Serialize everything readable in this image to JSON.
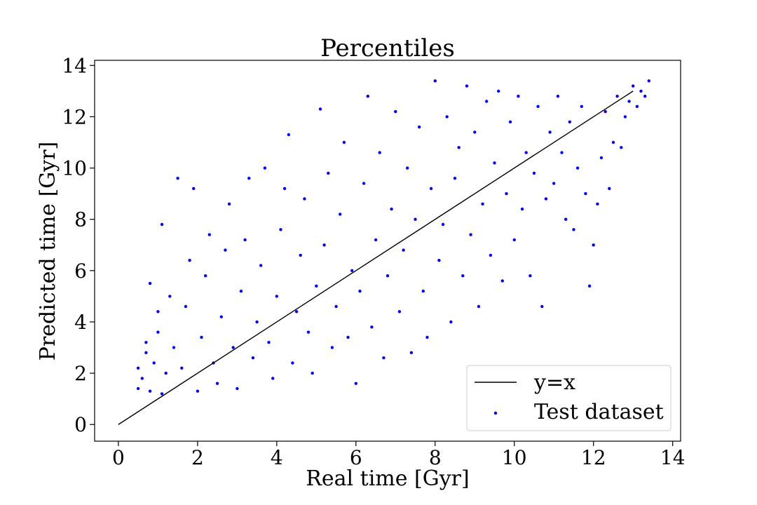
{
  "chart_data": {
    "type": "scatter",
    "title": "Percentiles",
    "xlabel": "Real time [Gyr]",
    "ylabel": "Predicted time [Gyr]",
    "xlim": [
      -0.6,
      14.2
    ],
    "ylim": [
      -0.65,
      14.2
    ],
    "xticks": [
      0,
      2,
      4,
      6,
      8,
      10,
      12,
      14
    ],
    "yticks": [
      0,
      2,
      4,
      6,
      8,
      10,
      12,
      14
    ],
    "grid": false,
    "legend_position": "lower-right",
    "series": [
      {
        "name": "y=x",
        "kind": "line",
        "color": "#000000",
        "x": [
          0,
          13.0
        ],
        "y": [
          0,
          13.0
        ]
      },
      {
        "name": "Test dataset",
        "kind": "scatter",
        "color": "#0000ee",
        "points": [
          [
            0.5,
            1.4
          ],
          [
            0.5,
            2.2
          ],
          [
            0.6,
            1.8
          ],
          [
            0.7,
            2.8
          ],
          [
            0.7,
            3.2
          ],
          [
            0.8,
            1.3
          ],
          [
            0.8,
            5.5
          ],
          [
            0.9,
            2.4
          ],
          [
            1.0,
            3.6
          ],
          [
            1.0,
            4.4
          ],
          [
            1.1,
            1.2
          ],
          [
            1.1,
            7.8
          ],
          [
            1.2,
            2.0
          ],
          [
            1.3,
            5.0
          ],
          [
            1.4,
            3.0
          ],
          [
            1.5,
            9.6
          ],
          [
            1.6,
            2.2
          ],
          [
            1.7,
            4.6
          ],
          [
            1.8,
            6.4
          ],
          [
            1.9,
            9.2
          ],
          [
            2.0,
            1.3
          ],
          [
            2.1,
            3.4
          ],
          [
            2.2,
            5.8
          ],
          [
            2.3,
            7.4
          ],
          [
            2.4,
            2.4
          ],
          [
            2.5,
            1.6
          ],
          [
            2.6,
            4.2
          ],
          [
            2.7,
            6.8
          ],
          [
            2.8,
            8.6
          ],
          [
            2.9,
            3.0
          ],
          [
            3.0,
            1.4
          ],
          [
            3.1,
            5.2
          ],
          [
            3.2,
            7.2
          ],
          [
            3.3,
            9.6
          ],
          [
            3.4,
            2.6
          ],
          [
            3.5,
            4.0
          ],
          [
            3.6,
            6.2
          ],
          [
            3.7,
            10.0
          ],
          [
            3.8,
            3.2
          ],
          [
            3.9,
            1.8
          ],
          [
            4.0,
            5.0
          ],
          [
            4.1,
            7.6
          ],
          [
            4.2,
            9.2
          ],
          [
            4.3,
            11.3
          ],
          [
            4.4,
            2.4
          ],
          [
            4.5,
            4.4
          ],
          [
            4.6,
            6.6
          ],
          [
            4.7,
            8.8
          ],
          [
            4.8,
            3.6
          ],
          [
            4.9,
            2.0
          ],
          [
            5.0,
            5.4
          ],
          [
            5.1,
            12.3
          ],
          [
            5.2,
            7.0
          ],
          [
            5.3,
            9.8
          ],
          [
            5.4,
            3.0
          ],
          [
            5.5,
            4.6
          ],
          [
            5.6,
            8.2
          ],
          [
            5.7,
            11.0
          ],
          [
            5.8,
            3.4
          ],
          [
            5.9,
            6.0
          ],
          [
            6.0,
            1.6
          ],
          [
            6.1,
            5.2
          ],
          [
            6.2,
            9.4
          ],
          [
            6.3,
            12.8
          ],
          [
            6.4,
            3.8
          ],
          [
            6.5,
            7.2
          ],
          [
            6.6,
            10.6
          ],
          [
            6.7,
            2.6
          ],
          [
            6.8,
            5.8
          ],
          [
            6.9,
            8.4
          ],
          [
            7.0,
            12.2
          ],
          [
            7.1,
            4.4
          ],
          [
            7.2,
            6.8
          ],
          [
            7.3,
            10.0
          ],
          [
            7.4,
            2.8
          ],
          [
            7.5,
            8.0
          ],
          [
            7.6,
            11.6
          ],
          [
            7.7,
            5.2
          ],
          [
            7.8,
            3.4
          ],
          [
            7.9,
            9.2
          ],
          [
            8.0,
            13.4
          ],
          [
            8.1,
            6.4
          ],
          [
            8.2,
            7.8
          ],
          [
            8.3,
            12.0
          ],
          [
            8.4,
            4.0
          ],
          [
            8.5,
            9.6
          ],
          [
            8.6,
            10.8
          ],
          [
            8.7,
            5.8
          ],
          [
            8.8,
            13.2
          ],
          [
            8.9,
            7.4
          ],
          [
            9.0,
            11.4
          ],
          [
            9.1,
            4.6
          ],
          [
            9.2,
            8.6
          ],
          [
            9.3,
            12.6
          ],
          [
            9.4,
            6.6
          ],
          [
            9.5,
            10.2
          ],
          [
            9.6,
            13.0
          ],
          [
            9.7,
            5.6
          ],
          [
            9.8,
            9.0
          ],
          [
            9.9,
            11.8
          ],
          [
            10.0,
            7.2
          ],
          [
            10.1,
            12.8
          ],
          [
            10.2,
            8.4
          ],
          [
            10.3,
            10.6
          ],
          [
            10.4,
            5.8
          ],
          [
            10.5,
            9.8
          ],
          [
            10.6,
            12.4
          ],
          [
            10.7,
            4.6
          ],
          [
            10.8,
            8.8
          ],
          [
            10.9,
            11.4
          ],
          [
            11.0,
            9.4
          ],
          [
            11.1,
            12.8
          ],
          [
            11.2,
            10.6
          ],
          [
            11.3,
            8.0
          ],
          [
            11.4,
            11.8
          ],
          [
            11.5,
            7.6
          ],
          [
            11.6,
            10.0
          ],
          [
            11.7,
            12.4
          ],
          [
            11.8,
            9.0
          ],
          [
            11.9,
            5.4
          ],
          [
            12.0,
            7.0
          ],
          [
            12.1,
            8.6
          ],
          [
            12.2,
            10.4
          ],
          [
            12.3,
            12.2
          ],
          [
            12.4,
            9.2
          ],
          [
            12.5,
            11.0
          ],
          [
            12.6,
            12.8
          ],
          [
            12.7,
            10.8
          ],
          [
            12.8,
            12.0
          ],
          [
            12.9,
            12.6
          ],
          [
            13.0,
            13.2
          ],
          [
            13.1,
            12.4
          ],
          [
            13.2,
            13.0
          ],
          [
            13.3,
            12.8
          ],
          [
            13.4,
            13.4
          ]
        ]
      }
    ]
  }
}
